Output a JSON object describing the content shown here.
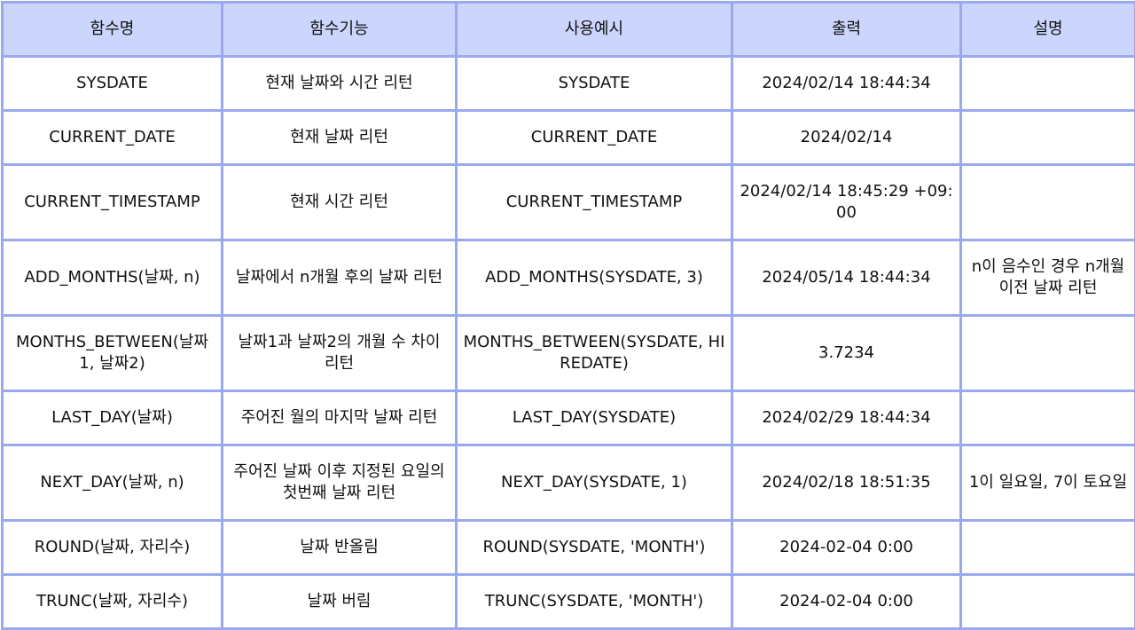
{
  "headers": [
    "함수명",
    "함수기능",
    "사용예시",
    "출력",
    "설명"
  ],
  "rows": [
    {
      "name": "SYSDATE",
      "function": "현재 날짜와 시간 리턴",
      "example": "SYSDATE",
      "output": "2024/02/14 18:44:34",
      "description": ""
    },
    {
      "name": "CURRENT_DATE",
      "function": "현재 날짜 리턴",
      "example": "CURRENT_DATE",
      "output": "2024/02/14",
      "description": ""
    },
    {
      "name": "CURRENT_TIMESTAMP",
      "function": "현재 시간 리턴",
      "example": "CURRENT_TIMESTAMP",
      "output": "2024/02/14 18:45:29 +09:00",
      "description": ""
    },
    {
      "name": "ADD_MONTHS(날짜, n)",
      "function": "날짜에서 n개월 후의 날짜 리턴",
      "example": "ADD_MONTHS(SYSDATE, 3)",
      "output": "2024/05/14 18:44:34",
      "description": "n이 음수인 경우 n개월 이전 날짜 리턴"
    },
    {
      "name": "MONTHS_BETWEEN(날짜1, 날짜2)",
      "function": "날짜1과 날짜2의 개월 수 차이 리턴",
      "example": "MONTHS_BETWEEN(SYSDATE, HIREDATE)",
      "output": "3.7234",
      "description": ""
    },
    {
      "name": "LAST_DAY(날짜)",
      "function": "주어진 월의 마지막 날짜 리턴",
      "example": "LAST_DAY(SYSDATE)",
      "output": "2024/02/29 18:44:34",
      "description": ""
    },
    {
      "name": "NEXT_DAY(날짜, n)",
      "function": "주어진 날짜 이후 지정된 요일의 첫번째 날짜 리턴",
      "example": "NEXT_DAY(SYSDATE, 1)",
      "output": "2024/02/18 18:51:35",
      "description": "1이 일요일, 7이 토요일"
    },
    {
      "name": "ROUND(날짜, 자리수)",
      "function": "날짜 반올림",
      "example": "ROUND(SYSDATE, 'MONTH')",
      "output": "2024-02-04 0:00",
      "description": ""
    },
    {
      "name": "TRUNC(날짜, 자리수)",
      "function": "날짜 버림",
      "example": "TRUNC(SYSDATE, 'MONTH')",
      "output": "2024-02-04 0:00",
      "description": ""
    }
  ]
}
